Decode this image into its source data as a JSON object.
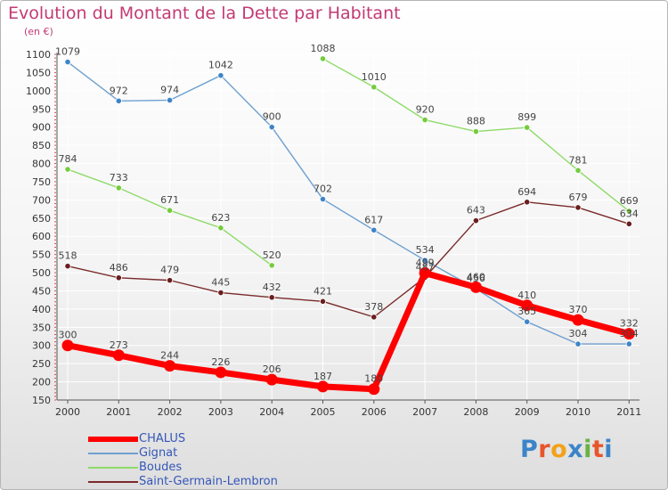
{
  "header": {
    "title": "Evolution du Montant de la Dette par Habitant",
    "unit": "(en €)"
  },
  "logo": {
    "text": "Proxiti",
    "letter_colors": [
      "#3b84c9",
      "#e8552a",
      "#f2a21a",
      "#3b84c9",
      "#69b342",
      "#e8552a",
      "#3b84c9"
    ]
  },
  "colors": {
    "title": "#c23a74",
    "legend_text": "#3557b8",
    "axis": "#555555",
    "grid": "#ffffff"
  },
  "chart_data": {
    "type": "line",
    "title": "Evolution du Montant de la Dette par Habitant",
    "ylabel": "(en €)",
    "xlabel": "",
    "x": [
      "2000",
      "2001",
      "2002",
      "2003",
      "2004",
      "2005",
      "2006",
      "2007",
      "2008",
      "2009",
      "2010",
      "2011"
    ],
    "ylim": [
      150,
      1100
    ],
    "yticks": [
      150,
      200,
      250,
      300,
      350,
      400,
      450,
      500,
      550,
      600,
      650,
      700,
      750,
      800,
      850,
      900,
      950,
      1000,
      1050,
      1100
    ],
    "grid": true,
    "legend_position": "bottom-left",
    "series": [
      {
        "name": "CHALUS",
        "color": "#ff0000",
        "marker_color": "#ff0000",
        "thick": true,
        "values": [
          300,
          273,
          244,
          226,
          206,
          187,
          180,
          499,
          460,
          410,
          370,
          332
        ]
      },
      {
        "name": "Gignat",
        "color": "#6fa0d0",
        "marker_color": "#3f84c8",
        "thick": false,
        "values": [
          1079,
          972,
          974,
          1042,
          900,
          702,
          617,
          534,
          456,
          365,
          304,
          304
        ]
      },
      {
        "name": "Boudes",
        "color": "#8edb68",
        "marker_color": "#74cc3e",
        "thick": false,
        "values": [
          784,
          733,
          671,
          623,
          520,
          null,
          null,
          null,
          null,
          null,
          null,
          null
        ]
      },
      {
        "name": "Boudes",
        "color": "#8edb68",
        "marker_color": "#74cc3e",
        "thick": false,
        "values": [
          null,
          null,
          null,
          null,
          null,
          1088,
          1010,
          920,
          888,
          899,
          781,
          669
        ]
      },
      {
        "name": "Saint-Germain-Lembron",
        "color": "#7a2a2a",
        "marker_color": "#6a1e1e",
        "thick": false,
        "values": [
          518,
          486,
          479,
          445,
          432,
          421,
          378,
          487,
          643,
          694,
          679,
          634
        ]
      }
    ],
    "point_labels": [
      [
        300,
        273,
        244,
        226,
        206,
        187,
        180,
        499,
        460,
        410,
        370,
        332
      ],
      [
        1079,
        972,
        974,
        1042,
        900,
        702,
        617,
        534,
        456,
        365,
        304,
        304
      ],
      [
        784,
        733,
        671,
        623,
        520,
        null,
        null,
        null,
        null,
        null,
        null,
        null
      ],
      [
        null,
        null,
        null,
        null,
        null,
        1088,
        1010,
        920,
        888,
        899,
        781,
        669
      ],
      [
        518,
        486,
        479,
        445,
        432,
        421,
        378,
        487,
        643,
        694,
        679,
        634
      ]
    ]
  },
  "legend": {
    "items": [
      {
        "label": "CHALUS",
        "color": "#ff0000",
        "thick": true
      },
      {
        "label": "Gignat",
        "color": "#6fa0d0",
        "thick": false
      },
      {
        "label": "Boudes",
        "color": "#8edb68",
        "thick": false
      },
      {
        "label": "Saint-Germain-Lembron",
        "color": "#7a2a2a",
        "thick": false
      }
    ]
  }
}
